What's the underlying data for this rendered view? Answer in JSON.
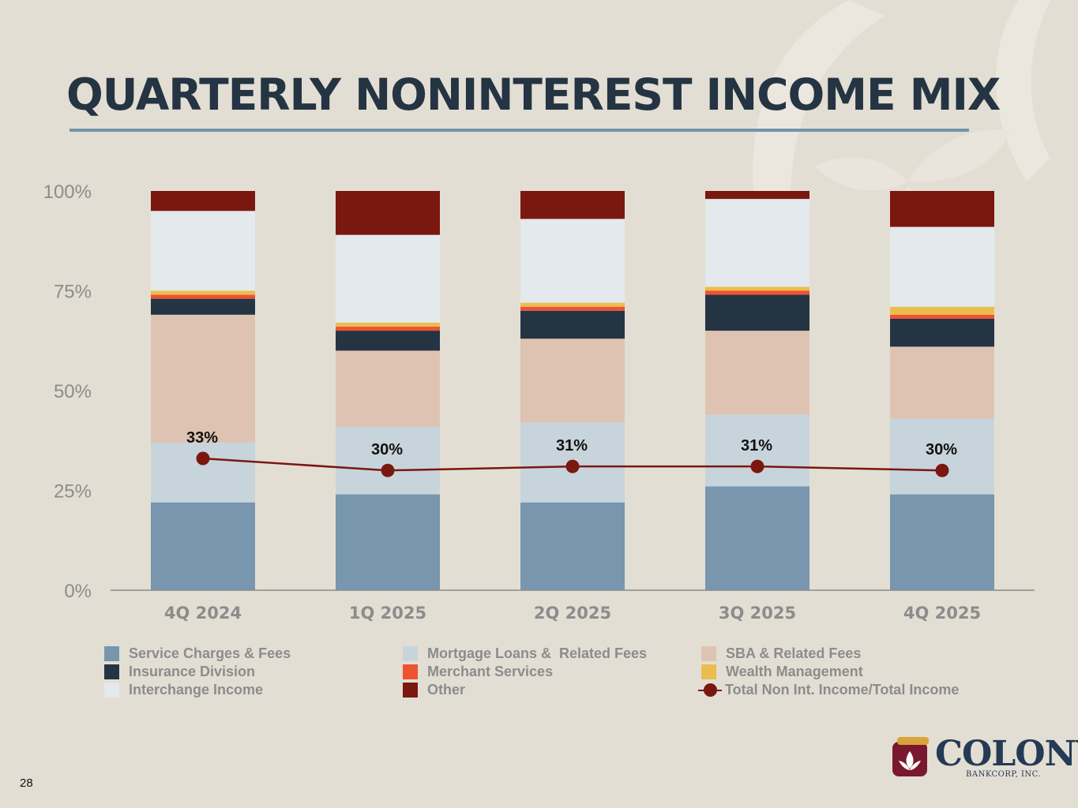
{
  "slide": {
    "title": "QUARTERLY NONINTEREST INCOME MIX",
    "page_number": "28"
  },
  "logo": {
    "name": "COLONY",
    "subtitle": "BANKCORP, INC."
  },
  "colors": {
    "background": "#e3ded3",
    "title": "#243443",
    "rule": "#7393ab",
    "line": "#7a1810"
  },
  "chart_data": {
    "type": "bar",
    "stacked": true,
    "title": "",
    "xlabel": "",
    "ylabel": "",
    "ylim": [
      0,
      100
    ],
    "yticks": [
      0,
      25,
      50,
      75,
      100
    ],
    "ytick_labels": [
      "0%",
      "25%",
      "50%",
      "75%",
      "100%"
    ],
    "categories": [
      "4Q 2024",
      "1Q 2025",
      "2Q 2025",
      "3Q 2025",
      "4Q 2025"
    ],
    "series": [
      {
        "name": "Service Charges & Fees",
        "color": "#7896ad",
        "values": [
          22,
          24,
          22,
          26,
          24
        ]
      },
      {
        "name": "Mortgage Loans &  Related Fees",
        "color": "#c8d4dc",
        "values": [
          15,
          17,
          20,
          18,
          19
        ]
      },
      {
        "name": "SBA & Related Fees",
        "color": "#dec3b3",
        "values": [
          32,
          19,
          21,
          21,
          18
        ]
      },
      {
        "name": "Insurance Division",
        "color": "#243443",
        "values": [
          4,
          5,
          7,
          9,
          7
        ]
      },
      {
        "name": "Merchant Services",
        "color": "#ef5133",
        "values": [
          1,
          1,
          1,
          1,
          1
        ]
      },
      {
        "name": "Wealth Management",
        "color": "#ebbd4e",
        "values": [
          1,
          1,
          1,
          1,
          2
        ]
      },
      {
        "name": "Interchange Income",
        "color": "#e3e9ec",
        "values": [
          20,
          22,
          21,
          22,
          20
        ]
      },
      {
        "name": "Other",
        "color": "#7a1810",
        "values": [
          5,
          11,
          7,
          2,
          9
        ]
      }
    ],
    "line_series": {
      "name": "Total Non Int. Income/Total Income",
      "color": "#7a1810",
      "values": [
        33,
        30,
        31,
        31,
        30
      ],
      "labels": [
        "33%",
        "30%",
        "31%",
        "31%",
        "30%"
      ]
    },
    "legend": {
      "placement": "bottom",
      "columns": [
        [
          "Service Charges & Fees",
          "Insurance Division",
          "Interchange Income"
        ],
        [
          "Mortgage Loans &  Related Fees",
          "Merchant Services",
          "Other"
        ],
        [
          "SBA & Related Fees",
          "Wealth Management",
          "Total Non Int. Income/Total Income"
        ]
      ]
    }
  }
}
